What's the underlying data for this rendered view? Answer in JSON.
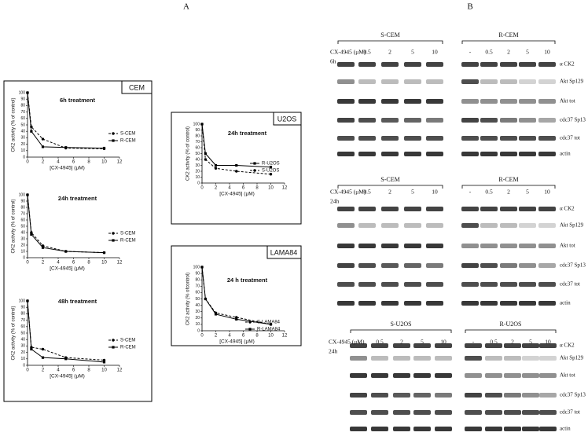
{
  "panel_labels": [
    "A",
    "B"
  ],
  "box_labels": [
    "CEM",
    "U2OS",
    "LAMA84"
  ],
  "chart_data": [
    {
      "type": "line",
      "title": "6h treatment",
      "xlabel": "[CX-4945] (μM)",
      "ylabel": "CK2 activity (% of control)",
      "x": [
        0,
        0.5,
        2,
        5,
        10
      ],
      "xlim": [
        0,
        12
      ],
      "xticks": [
        0,
        2,
        4,
        6,
        8,
        10,
        12
      ],
      "ylim": [
        0,
        100
      ],
      "yticks": [
        0,
        10,
        20,
        30,
        40,
        50,
        60,
        70,
        80,
        90,
        100
      ],
      "legend": "right",
      "series": [
        {
          "name": "S-CEM",
          "color": "#000000",
          "linestyle": "dashed",
          "marker": "circle",
          "values": [
            100,
            47,
            28,
            14,
            13
          ]
        },
        {
          "name": "R-CEM",
          "color": "#000000",
          "linestyle": "solid",
          "marker": "square",
          "values": [
            100,
            40,
            16,
            15,
            14
          ]
        }
      ]
    },
    {
      "type": "line",
      "title": "24h treatment",
      "xlabel": "[CX-4945] (μM)",
      "ylabel": "CK2 activity (% of control)",
      "x": [
        0,
        0.5,
        2,
        5,
        10
      ],
      "xlim": [
        0,
        12
      ],
      "xticks": [
        0,
        2,
        4,
        6,
        8,
        10,
        12
      ],
      "ylim": [
        0,
        100
      ],
      "yticks": [
        0,
        10,
        20,
        30,
        40,
        50,
        60,
        70,
        80,
        90,
        100
      ],
      "legend": "right",
      "series": [
        {
          "name": "S-CEM",
          "color": "#000000",
          "linestyle": "dashed",
          "marker": "circle",
          "values": [
            100,
            40,
            19,
            10,
            8
          ]
        },
        {
          "name": "R-CEM",
          "color": "#000000",
          "linestyle": "solid",
          "marker": "square",
          "values": [
            100,
            37,
            16,
            10,
            8
          ]
        }
      ]
    },
    {
      "type": "line",
      "title": "48h treatment",
      "xlabel": "[CX-4945] (μM)",
      "ylabel": "CK2 activity (% of control)",
      "x": [
        0,
        0.5,
        2,
        5,
        10
      ],
      "xlim": [
        0,
        12
      ],
      "xticks": [
        0,
        2,
        4,
        6,
        8,
        10,
        12
      ],
      "ylim": [
        0,
        100
      ],
      "yticks": [
        0,
        10,
        20,
        30,
        40,
        50,
        60,
        70,
        80,
        90,
        100
      ],
      "legend": "right",
      "series": [
        {
          "name": "S-CEM",
          "color": "#000000",
          "linestyle": "dashed",
          "marker": "circle",
          "values": [
            100,
            28,
            25,
            12,
            8
          ]
        },
        {
          "name": "R-CEM",
          "color": "#000000",
          "linestyle": "solid",
          "marker": "square",
          "values": [
            100,
            25,
            12,
            10,
            5
          ]
        }
      ]
    },
    {
      "type": "line",
      "title": "24h treatment",
      "xlabel": "[CX-4945] (μM)",
      "ylabel": "CK2 activity (% of control)",
      "x": [
        0,
        0.5,
        2,
        5,
        10
      ],
      "xlim": [
        0,
        12
      ],
      "xticks": [
        0,
        2,
        4,
        6,
        8,
        10,
        12
      ],
      "ylim": [
        0,
        100
      ],
      "yticks": [
        0,
        10,
        20,
        30,
        40,
        50,
        60,
        70,
        80,
        90,
        100
      ],
      "legend": "right",
      "series": [
        {
          "name": "R-U2OS",
          "color": "#000000",
          "linestyle": "solid",
          "marker": "square",
          "values": [
            100,
            50,
            30,
            30,
            27
          ]
        },
        {
          "name": "S-U2OS",
          "color": "#000000",
          "linestyle": "dashed",
          "marker": "circle",
          "values": [
            100,
            40,
            25,
            20,
            15
          ]
        }
      ]
    },
    {
      "type": "line",
      "title": "24 h treatment",
      "xlabel": "[CX-4945] (μM)",
      "ylabel": "CK2 activity (% ofcontrol)",
      "x": [
        0,
        0.5,
        2,
        5,
        10
      ],
      "xlim": [
        0,
        12
      ],
      "xticks": [
        0,
        2,
        4,
        6,
        8,
        10,
        12
      ],
      "ylim": [
        0,
        100
      ],
      "yticks": [
        0,
        10,
        20,
        30,
        40,
        50,
        60,
        70,
        80,
        90,
        100
      ],
      "legend": "right",
      "series": [
        {
          "name": "S-LAMA84",
          "color": "#000000",
          "linestyle": "dashed",
          "marker": "circle",
          "values": [
            100,
            50,
            28,
            21,
            10
          ]
        },
        {
          "name": "R-LAMA84",
          "color": "#000000",
          "linestyle": "solid",
          "marker": "square",
          "values": [
            100,
            50,
            26,
            18,
            10
          ]
        }
      ]
    }
  ],
  "blots": [
    {
      "groups": [
        "S-CEM",
        "R-CEM"
      ],
      "treatment": "CX-4945 (μM)",
      "time": "6h",
      "lanes": [
        "-",
        "0.5",
        "2",
        "5",
        "10",
        "-",
        "0.5",
        "2",
        "5",
        "10"
      ],
      "bands": [
        "α CK2",
        "Akt Sp129",
        "Akt tot",
        "cdc37 Sp13",
        "cdc37 tot",
        "actin"
      ]
    },
    {
      "groups": [
        "S-CEM",
        "R-CEM"
      ],
      "treatment": "CX-4945 (μM)",
      "time": "24h",
      "lanes": [
        "-",
        "0.5",
        "2",
        "5",
        "10",
        "-",
        "0.5",
        "2",
        "5",
        "10"
      ],
      "bands": [
        "α CK2",
        "Akt Sp129",
        "Akt tot",
        "cdc37 Sp13",
        "cdc37 tot",
        "actin"
      ]
    },
    {
      "groups": [
        "S-U2OS",
        "R-U2OS"
      ],
      "treatment": "CX-4945 (μM)",
      "time": "24h",
      "lanes": [
        "-",
        "0.5",
        "2",
        "5",
        "10",
        "-",
        "0.5",
        "2",
        "5",
        "10"
      ],
      "bands": [
        "α CK2",
        "Akt Sp129",
        "Akt tot",
        "cdc37 Sp13",
        "cdc37 tot",
        "actin"
      ]
    }
  ]
}
